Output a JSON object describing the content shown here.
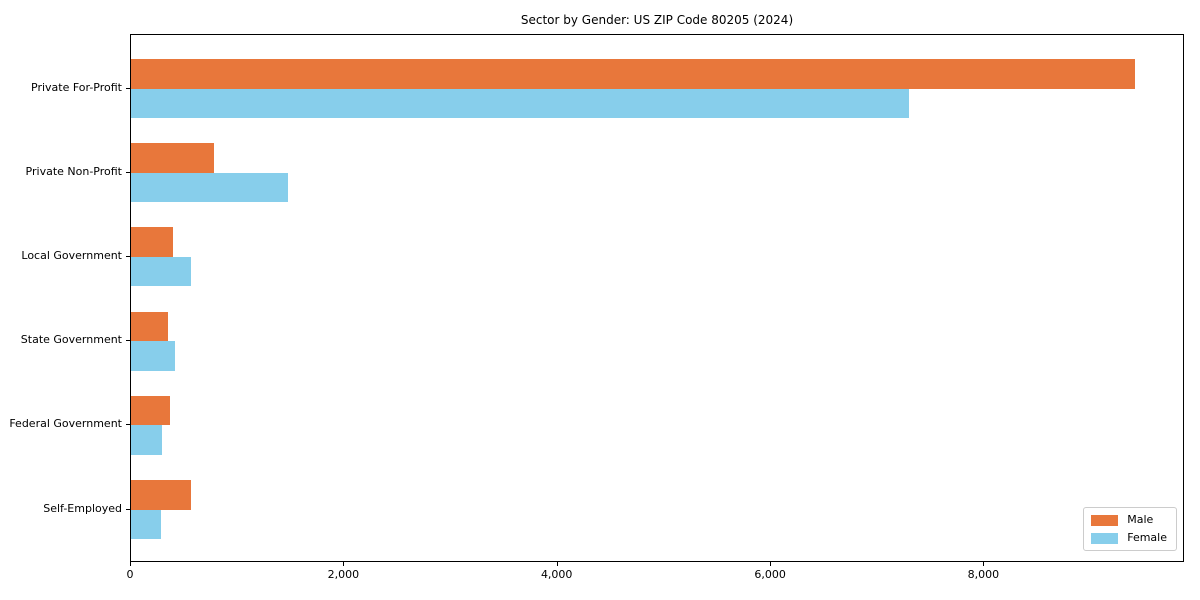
{
  "figure": {
    "background": "#ffffff"
  },
  "chart_data": {
    "type": "bar",
    "orientation": "horizontal",
    "title": "Sector by Gender: US ZIP Code 80205 (2024)",
    "categories": [
      "Private For-Profit",
      "Private Non-Profit",
      "Local Government",
      "State Government",
      "Federal Government",
      "Self-Employed"
    ],
    "series": [
      {
        "name": "Male",
        "color": "#e8773b",
        "values": [
          9410,
          775,
          395,
          345,
          365,
          560
        ]
      },
      {
        "name": "Female",
        "color": "#87ceeb",
        "values": [
          7290,
          1470,
          560,
          410,
          290,
          280
        ]
      }
    ],
    "xlabel": "",
    "ylabel": "",
    "xlim": [
      0,
      9880
    ],
    "xticks": [
      0,
      2000,
      4000,
      6000,
      8000
    ],
    "xtick_labels": [
      "0",
      "2,000",
      "4,000",
      "6,000",
      "8,000"
    ],
    "grid": false,
    "legend": {
      "position": "lower right",
      "entries": [
        "Male",
        "Female"
      ]
    },
    "axis_color": "#000000"
  }
}
